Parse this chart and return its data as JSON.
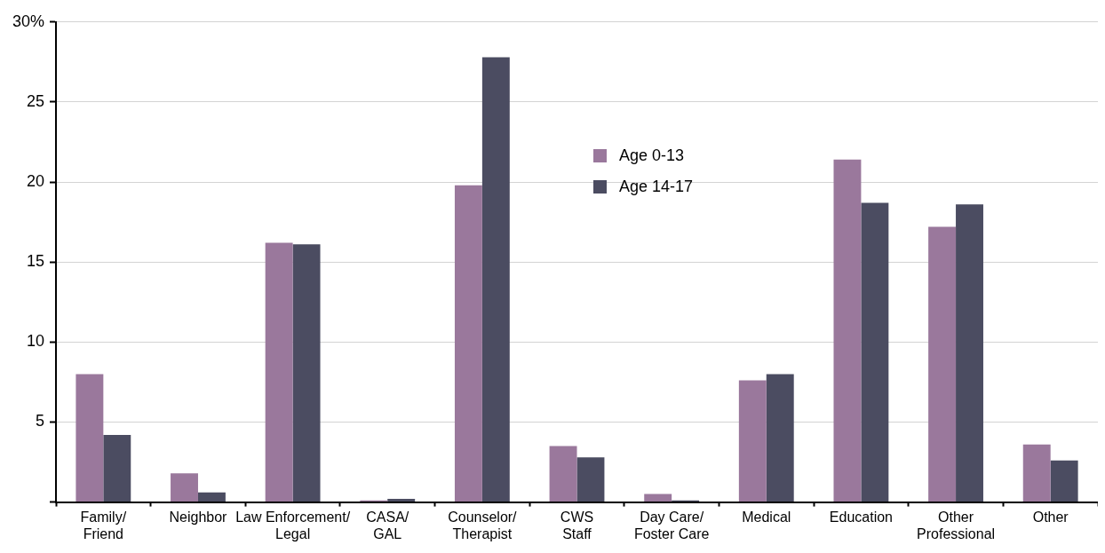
{
  "chart_data": {
    "type": "bar",
    "categories": [
      "Family/ Friend",
      "Neighbor",
      "Law Enforcement/ Legal",
      "CASA/ GAL",
      "Counselor/ Therapist",
      "CWS Staff",
      "Day Care/ Foster Care",
      "Medical",
      "Education",
      "Other Professional",
      "Other"
    ],
    "series": [
      {
        "name": "Age 0-13",
        "color": "#9a789c",
        "values": [
          8.0,
          1.8,
          16.2,
          0.1,
          19.8,
          3.5,
          0.5,
          7.6,
          21.4,
          17.2,
          3.6
        ]
      },
      {
        "name": "Age 14-17",
        "color": "#4b4c61",
        "values": [
          4.2,
          0.6,
          16.1,
          0.2,
          27.8,
          2.8,
          0.1,
          8.0,
          18.7,
          18.6,
          2.6
        ]
      }
    ],
    "ylim": [
      0,
      30
    ],
    "yticks": [
      {
        "value": 0,
        "label": null
      },
      5,
      10,
      15,
      20,
      25,
      {
        "value": 30,
        "label": "30%"
      }
    ],
    "grid": "y",
    "legend": "top"
  }
}
